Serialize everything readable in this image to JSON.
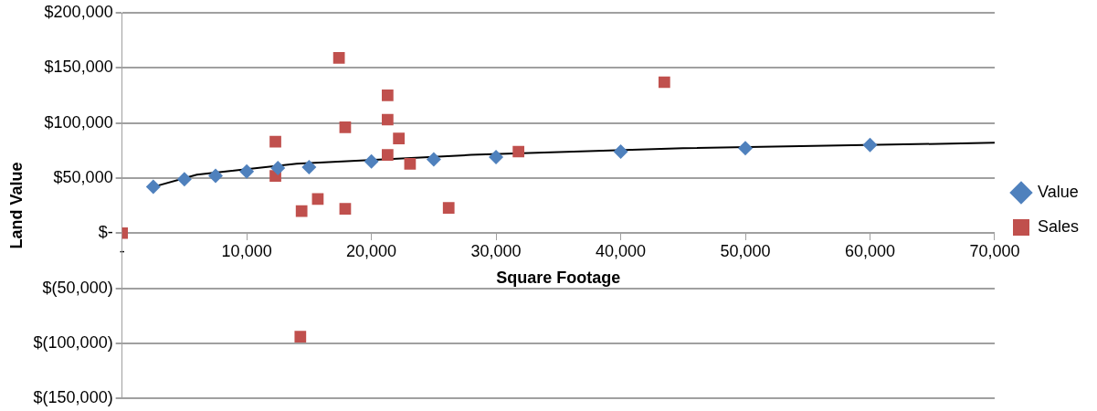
{
  "chart_data": {
    "type": "scatter",
    "xlabel": "Square Footage",
    "ylabel": "Land Value",
    "xlim": [
      0,
      70000
    ],
    "ylim": [
      -150000,
      200000
    ],
    "xticks": [
      {
        "value": 0,
        "label": "-"
      },
      {
        "value": 10000,
        "label": "10,000"
      },
      {
        "value": 20000,
        "label": "20,000"
      },
      {
        "value": 30000,
        "label": "30,000"
      },
      {
        "value": 40000,
        "label": "40,000"
      },
      {
        "value": 50000,
        "label": "50,000"
      },
      {
        "value": 60000,
        "label": "60,000"
      },
      {
        "value": 70000,
        "label": "70,000"
      }
    ],
    "yticks": [
      {
        "value": -150000,
        "label": "$(150,000)"
      },
      {
        "value": -100000,
        "label": "$(100,000)"
      },
      {
        "value": -50000,
        "label": "$(50,000)"
      },
      {
        "value": 0,
        "label": "$-"
      },
      {
        "value": 50000,
        "label": "$50,000"
      },
      {
        "value": 100000,
        "label": "$100,000"
      },
      {
        "value": 150000,
        "label": "$150,000"
      },
      {
        "value": 200000,
        "label": "$200,000"
      }
    ],
    "grid": "y",
    "legend": "right",
    "series": [
      {
        "name": "Value",
        "color": "#4f81bd",
        "marker": "diamond",
        "x": [
          2500,
          5000,
          7500,
          10000,
          12500,
          15000,
          20000,
          25000,
          30000,
          40000,
          50000,
          60000
        ],
        "values": [
          42000,
          49000,
          52000,
          56000,
          59000,
          60000,
          65000,
          67000,
          69000,
          74000,
          77000,
          80000
        ]
      },
      {
        "name": "Sales",
        "color": "#c0504d",
        "marker": "square",
        "x": [
          0,
          12300,
          12300,
          14400,
          15700,
          17400,
          17900,
          17900,
          21300,
          21300,
          22200,
          21300,
          23100,
          26200,
          14300,
          31800,
          43500
        ],
        "values": [
          0,
          83000,
          52000,
          20000,
          31000,
          159000,
          96000,
          22000,
          125000,
          103000,
          86000,
          71000,
          63000,
          23000,
          -94000,
          74000,
          137000
        ]
      },
      {
        "type": "line",
        "color": "#000000",
        "marker": "none",
        "x": [
          2500,
          6000,
          14000,
          28000,
          45000,
          70000
        ],
        "values": [
          42000,
          53000,
          63000,
          71000,
          77000,
          82000
        ]
      }
    ]
  }
}
